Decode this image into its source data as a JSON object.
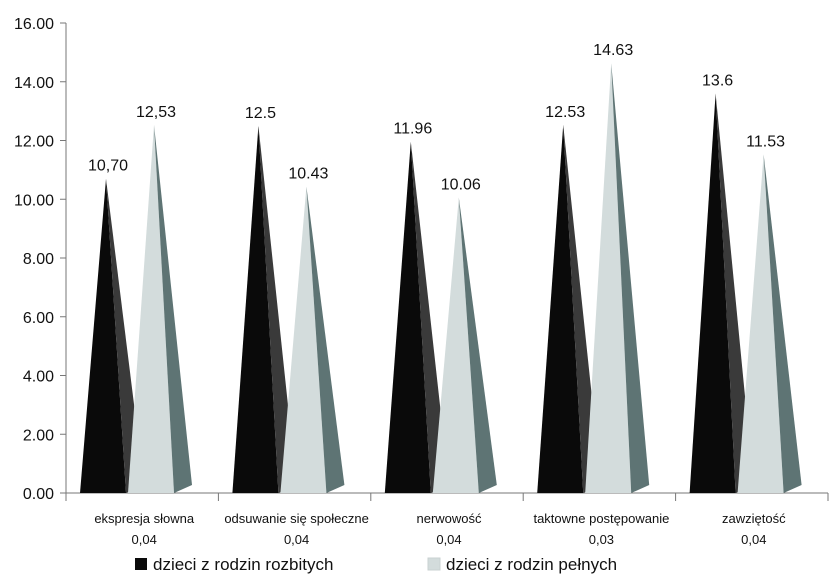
{
  "chart_data": {
    "type": "bar",
    "categories": [
      [
        "ekspresja słowna",
        "0,04"
      ],
      [
        "odsuwanie się społeczne",
        "0,04"
      ],
      [
        "nerwowość",
        "0,04"
      ],
      [
        "taktowne postępowanie",
        "0,03"
      ],
      [
        "zawziętość",
        "0,04"
      ]
    ],
    "series": [
      {
        "name": "dzieci z rodzin rozbitych",
        "values": [
          10.7,
          12.5,
          11.96,
          12.53,
          13.6
        ],
        "labels": [
          "10,70",
          "12.5",
          "11.96",
          "12.53",
          "13.6"
        ],
        "color": "#0a0a0a",
        "shade": "#3a3a3a"
      },
      {
        "name": "dzieci z rodzin pełnych",
        "values": [
          12.53,
          10.43,
          10.06,
          14.63,
          11.53
        ],
        "labels": [
          "12,53",
          "10.43",
          "10.06",
          "14.63",
          "11.53"
        ],
        "color": "#d3dcdc",
        "shade": "#5e7474"
      }
    ],
    "yticks": [
      "0.00",
      "2.00",
      "4.00",
      "6.00",
      "8.00",
      "10.00",
      "12.00",
      "14.00",
      "16.00"
    ],
    "ylim": [
      0,
      16
    ],
    "grid": false,
    "legend": "bottom"
  }
}
